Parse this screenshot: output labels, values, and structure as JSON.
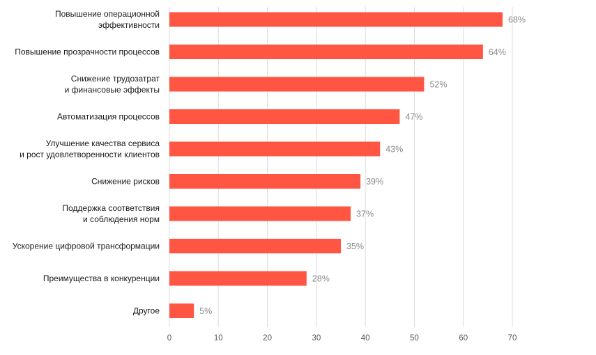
{
  "chart_data": {
    "type": "bar",
    "orientation": "horizontal",
    "title": "",
    "xlabel": "",
    "ylabel": "",
    "categories": [
      [
        "Повышение операционной",
        "эффективности"
      ],
      [
        "Повышение прозрачности процессов"
      ],
      [
        "Снижение трудозатрат",
        "и финансовые эффекты"
      ],
      [
        "Автоматизация процессов"
      ],
      [
        "Улучшение качества сервиса",
        "и рост удовлетворенности клиентов"
      ],
      [
        "Снижение рисков"
      ],
      [
        "Поддержка соответствия",
        "и соблюдения норм"
      ],
      [
        "Ускорение цифровой трансформации"
      ],
      [
        "Преимущества в конкуренции"
      ],
      [
        "Другое"
      ]
    ],
    "values": [
      68,
      64,
      52,
      47,
      43,
      39,
      37,
      35,
      28,
      5
    ],
    "value_labels": [
      "68%",
      "64%",
      "52%",
      "47%",
      "43%",
      "39%",
      "37%",
      "35%",
      "28%",
      "5%"
    ],
    "x_ticks": [
      0,
      10,
      20,
      30,
      40,
      50,
      60,
      70
    ],
    "xlim": [
      0,
      70
    ],
    "grid": true,
    "bar_color": "#ff5643"
  }
}
